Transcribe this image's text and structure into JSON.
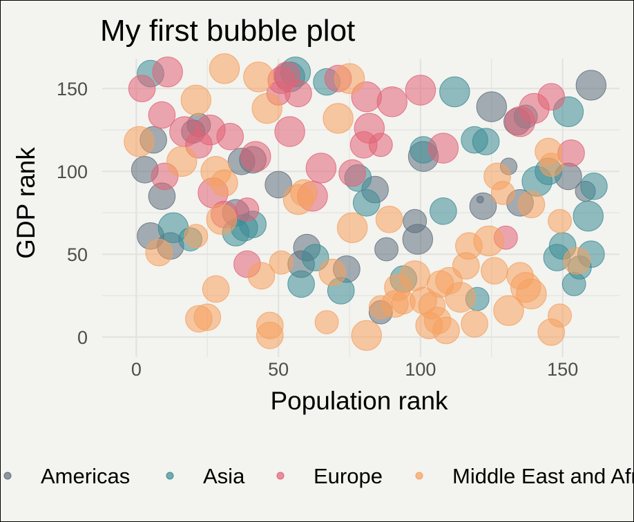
{
  "chart_data": {
    "type": "scatter",
    "title": "My first bubble plot",
    "xlabel": "Population rank",
    "ylabel": "GDP rank",
    "xlim": [
      -12,
      170
    ],
    "ylim": [
      -12,
      168
    ],
    "x_ticks": [
      0,
      50,
      100,
      150
    ],
    "y_ticks": [
      0,
      50,
      100,
      150
    ],
    "grid": true,
    "legend_position": "bottom",
    "series": [
      {
        "name": "Americas",
        "color": "#5f6f7e",
        "points": [
          [
            3,
            101,
            7
          ],
          [
            6,
            119,
            7
          ],
          [
            5,
            61,
            7
          ],
          [
            9,
            85,
            7
          ],
          [
            12,
            55,
            7
          ],
          [
            20,
            124,
            6
          ],
          [
            22,
            128,
            6
          ],
          [
            37,
            106,
            7
          ],
          [
            41,
            107,
            7
          ],
          [
            35,
            75,
            7
          ],
          [
            50,
            92,
            7
          ],
          [
            60,
            54,
            7
          ],
          [
            58,
            44,
            7
          ],
          [
            74,
            41,
            7
          ],
          [
            84,
            89,
            7
          ],
          [
            86,
            15,
            6
          ],
          [
            88,
            53,
            6
          ],
          [
            98,
            70,
            6
          ],
          [
            99,
            59,
            8
          ],
          [
            101,
            109,
            8
          ],
          [
            121,
            83,
            1
          ],
          [
            122,
            79,
            7
          ],
          [
            125,
            139,
            8
          ],
          [
            131,
            103,
            4
          ],
          [
            134,
            130,
            7
          ],
          [
            135,
            81,
            7
          ],
          [
            152,
            97,
            7
          ],
          [
            158,
            88,
            5
          ],
          [
            160,
            152,
            8
          ]
        ]
      },
      {
        "name": "Asia",
        "color": "#3d8c96",
        "points": [
          [
            5,
            159,
            7
          ],
          [
            19,
            59,
            6
          ],
          [
            13,
            66,
            8
          ],
          [
            35,
            63,
            7
          ],
          [
            38,
            66,
            7
          ],
          [
            41,
            68,
            7
          ],
          [
            54,
            157,
            8
          ],
          [
            56,
            160,
            8
          ],
          [
            58,
            32,
            7
          ],
          [
            63,
            48,
            7
          ],
          [
            67,
            154,
            7
          ],
          [
            72,
            28,
            7
          ],
          [
            78,
            96,
            7
          ],
          [
            81,
            81,
            7
          ],
          [
            94,
            35,
            7
          ],
          [
            101,
            113,
            7
          ],
          [
            108,
            76,
            7
          ],
          [
            112,
            148,
            8
          ],
          [
            119,
            119,
            7
          ],
          [
            120,
            23,
            6
          ],
          [
            123,
            118,
            7
          ],
          [
            137,
            133,
            6
          ],
          [
            141,
            94,
            8
          ],
          [
            145,
            100,
            7
          ],
          [
            148,
            48,
            7
          ],
          [
            150,
            55,
            7
          ],
          [
            152,
            136,
            8
          ],
          [
            154,
            32,
            6
          ],
          [
            156,
            42,
            6
          ],
          [
            159,
            73,
            8
          ],
          [
            160,
            50,
            7
          ],
          [
            161,
            91,
            7
          ]
        ]
      },
      {
        "name": "Europe",
        "color": "#e26277",
        "points": [
          [
            2,
            150,
            7
          ],
          [
            9,
            134,
            7
          ],
          [
            11,
            160,
            8
          ],
          [
            10,
            97,
            7
          ],
          [
            17,
            124,
            8
          ],
          [
            22,
            116,
            7
          ],
          [
            26,
            125,
            8
          ],
          [
            27,
            87,
            8
          ],
          [
            31,
            74,
            7
          ],
          [
            33,
            121,
            7
          ],
          [
            39,
            77,
            6
          ],
          [
            42,
            109,
            8
          ],
          [
            39,
            44,
            7
          ],
          [
            50,
            147,
            6
          ],
          [
            51,
            155,
            7
          ],
          [
            53,
            158,
            7
          ],
          [
            54,
            124,
            8
          ],
          [
            57,
            147,
            7
          ],
          [
            62,
            85,
            8
          ],
          [
            65,
            102,
            8
          ],
          [
            71,
            156,
            7
          ],
          [
            76,
            99,
            7
          ],
          [
            80,
            116,
            7
          ],
          [
            81,
            145,
            8
          ],
          [
            82,
            126,
            8
          ],
          [
            86,
            116,
            6
          ],
          [
            90,
            142,
            8
          ],
          [
            100,
            149,
            8
          ],
          [
            108,
            114,
            8
          ],
          [
            130,
            60,
            6
          ],
          [
            135,
            130,
            8
          ],
          [
            140,
            138,
            8
          ],
          [
            146,
            145,
            7
          ],
          [
            153,
            111,
            7
          ]
        ]
      },
      {
        "name": "Middle East and Africa",
        "color": "#f5a05e",
        "points": [
          [
            1,
            118,
            8
          ],
          [
            8,
            51,
            7
          ],
          [
            16,
            106,
            8
          ],
          [
            21,
            61,
            6
          ],
          [
            21,
            143,
            8
          ],
          [
            22,
            11,
            7
          ],
          [
            25,
            12,
            7
          ],
          [
            28,
            29,
            7
          ],
          [
            28,
            100,
            8
          ],
          [
            30,
            71,
            8
          ],
          [
            31,
            93,
            7
          ],
          [
            31,
            162,
            8
          ],
          [
            43,
            157,
            8
          ],
          [
            44,
            37,
            7
          ],
          [
            46,
            138,
            8
          ],
          [
            47,
            7,
            7
          ],
          [
            47,
            1,
            7
          ],
          [
            51,
            45,
            6
          ],
          [
            57,
            83,
            8
          ],
          [
            59,
            87,
            7
          ],
          [
            67,
            9,
            6
          ],
          [
            69,
            39,
            7
          ],
          [
            71,
            132,
            8
          ],
          [
            75,
            156,
            8
          ],
          [
            76,
            66,
            8
          ],
          [
            81,
            1,
            8
          ],
          [
            86,
            18,
            6
          ],
          [
            89,
            71,
            7
          ],
          [
            91,
            20,
            7
          ],
          [
            92,
            30,
            7
          ],
          [
            94,
            21,
            6
          ],
          [
            98,
            37,
            8
          ],
          [
            101,
            22,
            7
          ],
          [
            103,
            7,
            7
          ],
          [
            104,
            19,
            7
          ],
          [
            106,
            10,
            7
          ],
          [
            107,
            32,
            7
          ],
          [
            109,
            4,
            7
          ],
          [
            110,
            34,
            7
          ],
          [
            114,
            24,
            8
          ],
          [
            116,
            43,
            7
          ],
          [
            117,
            55,
            7
          ],
          [
            119,
            8,
            7
          ],
          [
            124,
            58,
            8
          ],
          [
            127,
            97,
            7
          ],
          [
            126,
            40,
            7
          ],
          [
            129,
            87,
            6
          ],
          [
            131,
            16,
            8
          ],
          [
            135,
            37,
            7
          ],
          [
            137,
            30,
            8
          ],
          [
            139,
            26,
            8
          ],
          [
            139,
            80,
            7
          ],
          [
            145,
            112,
            7
          ],
          [
            146,
            104,
            6
          ],
          [
            146,
            3,
            7
          ],
          [
            149,
            13,
            6
          ],
          [
            149,
            70,
            6
          ],
          [
            155,
            46,
            7
          ]
        ]
      }
    ]
  }
}
